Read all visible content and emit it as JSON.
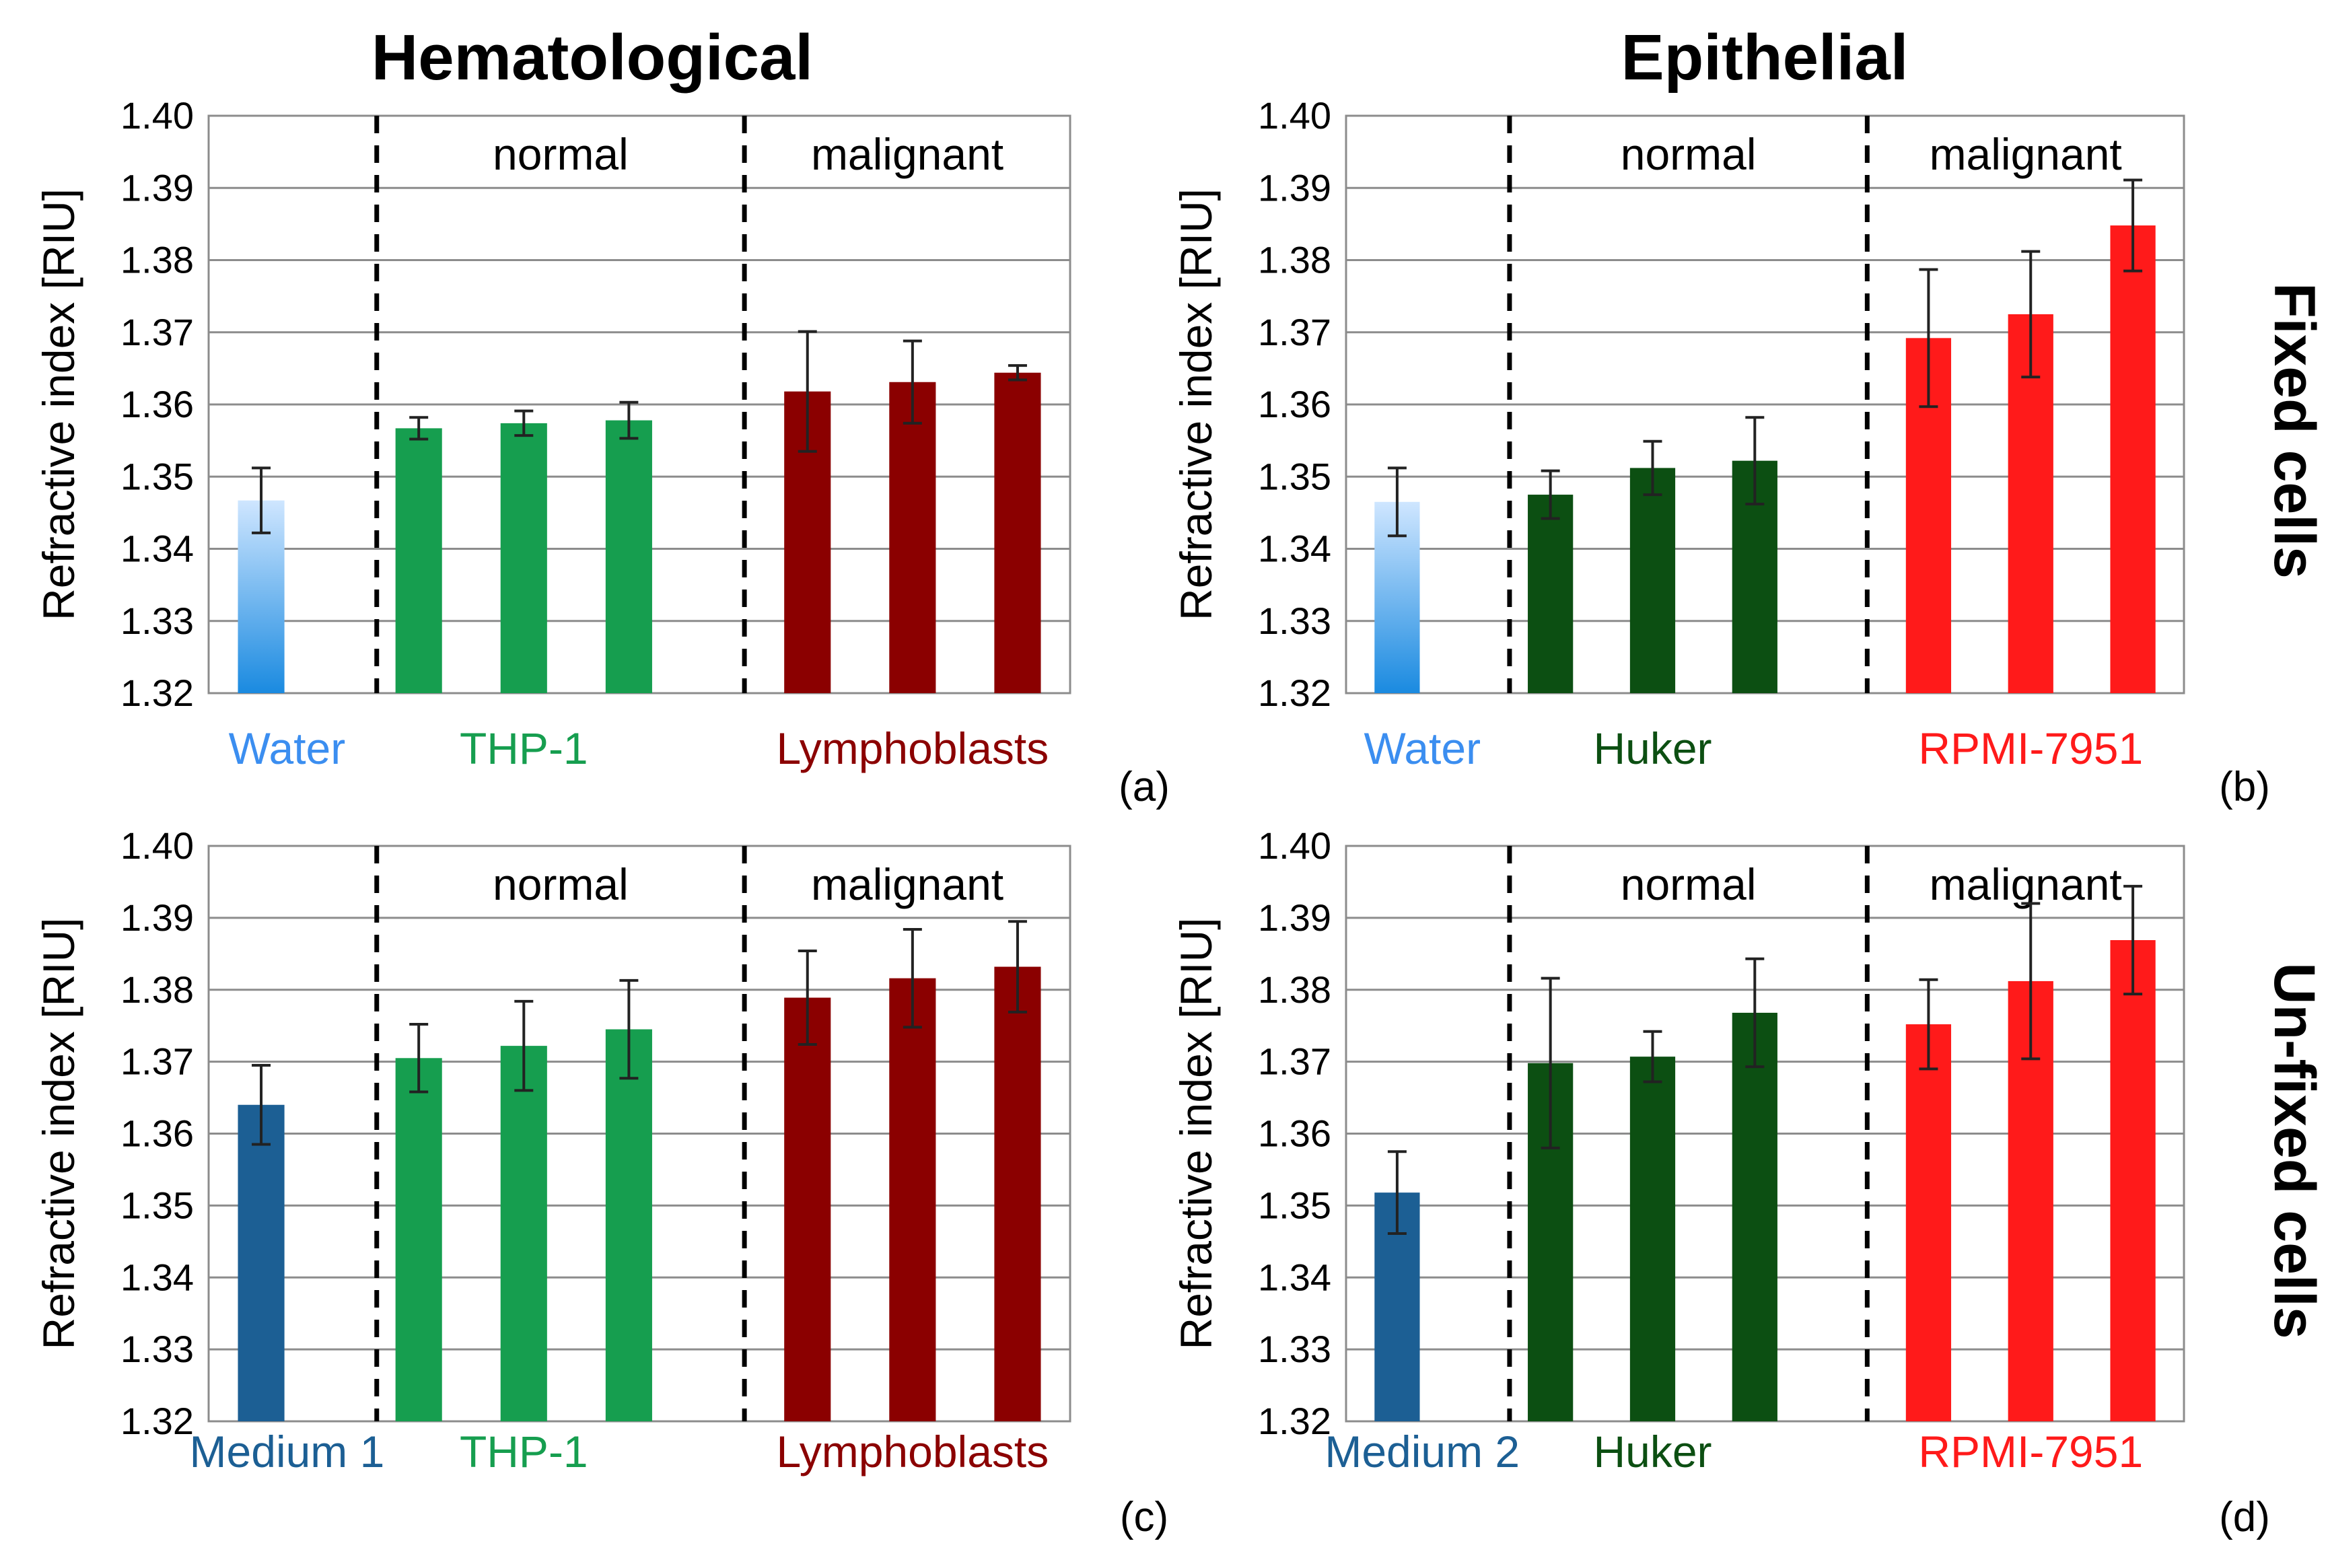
{
  "column_titles": [
    "Hematological",
    "Epithelial"
  ],
  "row_titles": [
    "Fixed cells",
    "Un-fixed cells"
  ],
  "colors": {
    "water_top": "#cfe6ff",
    "water_bottom": "#1a8ae0",
    "medium": "#1c5f94",
    "thp1": "#169e4f",
    "lymphoblasts": "#8b0000",
    "huker": "#0c4f12",
    "rpmi": "#ff1a1a",
    "water_label": "#3b8ef0"
  },
  "chart_data": [
    {
      "panel": "(a)",
      "type": "bar",
      "ylabel": "Refractive index [RIU]",
      "ylim": [
        1.32,
        1.4
      ],
      "yticks": [
        "1.32",
        "1.33",
        "1.34",
        "1.35",
        "1.36",
        "1.37",
        "1.38",
        "1.39",
        "1.40"
      ],
      "grid": true,
      "group_labels": [
        "normal",
        "malignant"
      ],
      "categories": [
        {
          "label": "Water",
          "color_key": "water_label",
          "bars": [
            {
              "value": 1.3467,
              "err": 0.0045,
              "fill": "water"
            }
          ]
        },
        {
          "label": "THP-1",
          "color_key": "thp1",
          "bars": [
            {
              "value": 1.3567,
              "err": 0.0015,
              "fill": "thp1"
            },
            {
              "value": 1.3574,
              "err": 0.0017,
              "fill": "thp1"
            },
            {
              "value": 1.3578,
              "err": 0.0025,
              "fill": "thp1"
            }
          ]
        },
        {
          "label": "Lymphoblasts",
          "color_key": "lymphoblasts",
          "bars": [
            {
              "value": 1.3618,
              "err": 0.0083,
              "fill": "lymphoblasts"
            },
            {
              "value": 1.3631,
              "err": 0.0057,
              "fill": "lymphoblasts"
            },
            {
              "value": 1.3644,
              "err": 0.001,
              "fill": "lymphoblasts"
            }
          ]
        }
      ]
    },
    {
      "panel": "(b)",
      "type": "bar",
      "ylabel": "Refractive index [RIU]",
      "ylim": [
        1.32,
        1.4
      ],
      "yticks": [
        "1.32",
        "1.33",
        "1.34",
        "1.35",
        "1.36",
        "1.37",
        "1.38",
        "1.39",
        "1.40"
      ],
      "grid": true,
      "group_labels": [
        "normal",
        "malignant"
      ],
      "categories": [
        {
          "label": "Water",
          "color_key": "water_label",
          "bars": [
            {
              "value": 1.3465,
              "err": 0.0047,
              "fill": "water"
            }
          ]
        },
        {
          "label": "Huker",
          "color_key": "huker",
          "bars": [
            {
              "value": 1.3475,
              "err": 0.0033,
              "fill": "huker"
            },
            {
              "value": 1.3512,
              "err": 0.0037,
              "fill": "huker"
            },
            {
              "value": 1.3522,
              "err": 0.006,
              "fill": "huker"
            }
          ]
        },
        {
          "label": "RPMI-7951",
          "color_key": "rpmi",
          "bars": [
            {
              "value": 1.3692,
              "err": 0.0095,
              "fill": "rpmi"
            },
            {
              "value": 1.3725,
              "err": 0.0087,
              "fill": "rpmi"
            },
            {
              "value": 1.3848,
              "err": 0.0063,
              "fill": "rpmi"
            }
          ]
        }
      ]
    },
    {
      "panel": "(c)",
      "type": "bar",
      "ylabel": "Refractive index [RIU]",
      "ylim": [
        1.32,
        1.4
      ],
      "yticks": [
        "1.32",
        "1.33",
        "1.34",
        "1.35",
        "1.36",
        "1.37",
        "1.38",
        "1.39",
        "1.40"
      ],
      "grid": true,
      "group_labels": [
        "normal",
        "malignant"
      ],
      "categories": [
        {
          "label": "Medium 1",
          "color_key": "medium",
          "bars": [
            {
              "value": 1.364,
              "err": 0.0055,
              "fill": "medium"
            }
          ]
        },
        {
          "label": "THP-1",
          "color_key": "thp1",
          "bars": [
            {
              "value": 1.3705,
              "err": 0.0047,
              "fill": "thp1"
            },
            {
              "value": 1.3722,
              "err": 0.0062,
              "fill": "thp1"
            },
            {
              "value": 1.3745,
              "err": 0.0068,
              "fill": "thp1"
            }
          ]
        },
        {
          "label": "Lymphoblasts",
          "color_key": "lymphoblasts",
          "bars": [
            {
              "value": 1.3789,
              "err": 0.0065,
              "fill": "lymphoblasts"
            },
            {
              "value": 1.3816,
              "err": 0.0068,
              "fill": "lymphoblasts"
            },
            {
              "value": 1.3832,
              "err": 0.0063,
              "fill": "lymphoblasts"
            }
          ]
        }
      ]
    },
    {
      "panel": "(d)",
      "type": "bar",
      "ylabel": "Refractive index [RIU]",
      "ylim": [
        1.32,
        1.4
      ],
      "yticks": [
        "1.32",
        "1.33",
        "1.34",
        "1.35",
        "1.36",
        "1.37",
        "1.38",
        "1.39",
        "1.40"
      ],
      "grid": true,
      "group_labels": [
        "normal",
        "malignant"
      ],
      "categories": [
        {
          "label": "Medium 2",
          "color_key": "medium",
          "bars": [
            {
              "value": 1.3518,
              "err": 0.0057,
              "fill": "medium"
            }
          ]
        },
        {
          "label": "Huker",
          "color_key": "huker",
          "bars": [
            {
              "value": 1.3698,
              "err": 0.0118,
              "fill": "huker"
            },
            {
              "value": 1.3707,
              "err": 0.0035,
              "fill": "huker"
            },
            {
              "value": 1.3768,
              "err": 0.0075,
              "fill": "huker"
            }
          ]
        },
        {
          "label": "RPMI-7951",
          "color_key": "rpmi",
          "bars": [
            {
              "value": 1.3752,
              "err": 0.0062,
              "fill": "rpmi"
            },
            {
              "value": 1.3812,
              "err": 0.0108,
              "fill": "rpmi"
            },
            {
              "value": 1.3869,
              "err": 0.0075,
              "fill": "rpmi"
            }
          ]
        }
      ]
    }
  ]
}
